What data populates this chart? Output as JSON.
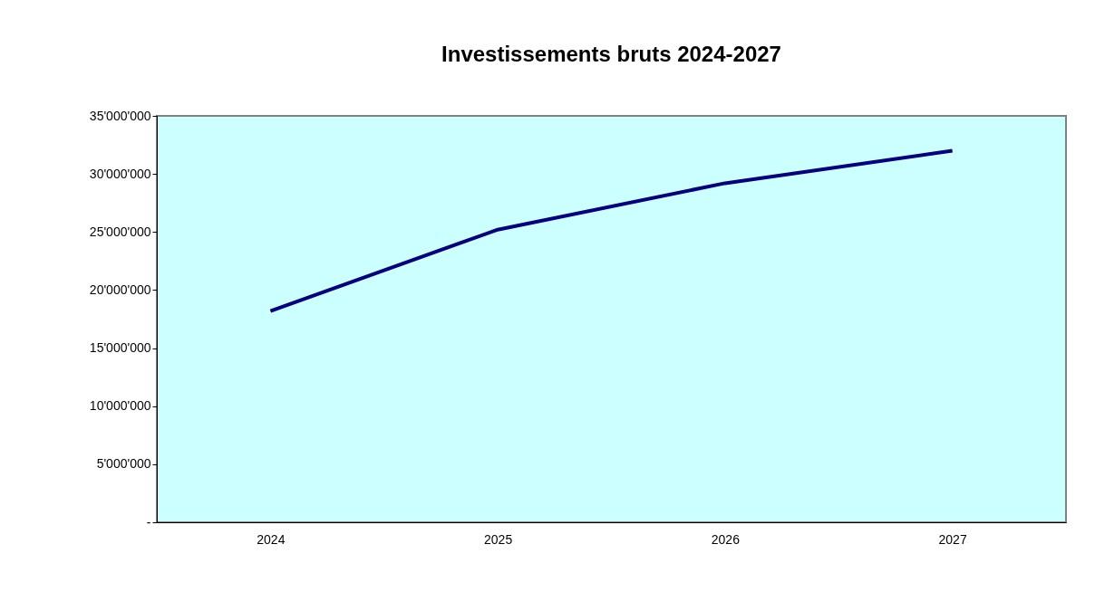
{
  "chart_data": {
    "type": "line",
    "title": "Investissements bruts 2024-2027",
    "categories": [
      "2024",
      "2025",
      "2026",
      "2027"
    ],
    "series": [
      {
        "color": "#000080",
        "values": [
          18200000,
          25200000,
          29200000,
          32000000
        ]
      }
    ],
    "ylim": [
      0,
      35000000
    ],
    "yticks": [
      {
        "value": 0,
        "label": "-"
      },
      {
        "value": 5000000,
        "label": "5'000'000"
      },
      {
        "value": 10000000,
        "label": "10'000'000"
      },
      {
        "value": 15000000,
        "label": "15'000'000"
      },
      {
        "value": 20000000,
        "label": "20'000'000"
      },
      {
        "value": 25000000,
        "label": "25'000'000"
      },
      {
        "value": 30000000,
        "label": "30'000'000"
      },
      {
        "value": 35000000,
        "label": "35'000'000"
      }
    ],
    "grid": false,
    "legend": false,
    "marker": "none",
    "line_style": "solid"
  }
}
